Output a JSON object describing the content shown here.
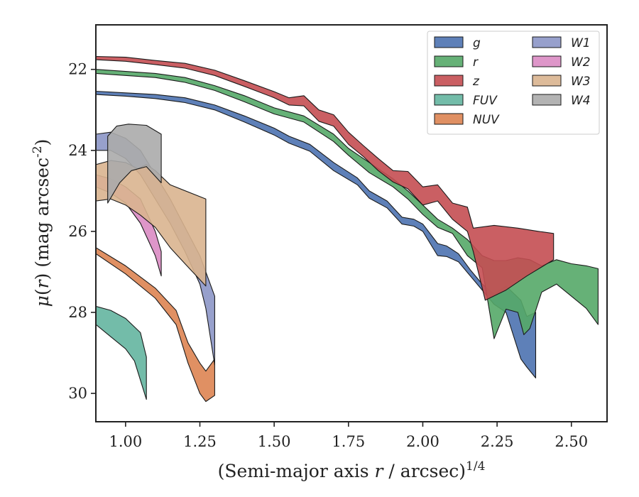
{
  "chart_data": {
    "type": "area",
    "xlabel": "(Semi-major axis r / arcsec)^{1/4}",
    "ylabel": "μ(r) (mag arcsec^{-2})",
    "xlim": [
      0.9,
      2.62
    ],
    "ylim": [
      30.7,
      20.9
    ],
    "y_inverted": true,
    "x_ticks": [
      "1.00",
      "1.25",
      "1.50",
      "1.75",
      "2.00",
      "2.25",
      "2.50"
    ],
    "x_tick_values": [
      1.0,
      1.25,
      1.5,
      1.75,
      2.0,
      2.25,
      2.5
    ],
    "y_ticks": [
      "22",
      "24",
      "26",
      "28",
      "30"
    ],
    "y_tick_values": [
      22,
      24,
      26,
      28,
      30
    ],
    "grid": false,
    "legend_position": "top-right",
    "legend_columns": 2,
    "series": [
      {
        "name": "g",
        "color": "#4c72b0",
        "upper": [
          [
            0.9,
            22.54
          ],
          [
            1.0,
            22.58
          ],
          [
            1.1,
            22.62
          ],
          [
            1.2,
            22.7
          ],
          [
            1.3,
            22.88
          ],
          [
            1.4,
            23.15
          ],
          [
            1.5,
            23.45
          ],
          [
            1.55,
            23.65
          ],
          [
            1.62,
            23.85
          ],
          [
            1.7,
            24.3
          ],
          [
            1.78,
            24.68
          ],
          [
            1.82,
            25.0
          ],
          [
            1.88,
            25.25
          ],
          [
            1.93,
            25.65
          ],
          [
            1.97,
            25.7
          ],
          [
            2.0,
            25.82
          ],
          [
            2.05,
            26.3
          ],
          [
            2.08,
            26.36
          ],
          [
            2.12,
            26.55
          ],
          [
            2.16,
            26.95
          ],
          [
            2.2,
            27.3
          ],
          [
            2.24,
            27.55
          ],
          [
            2.28,
            27.35
          ],
          [
            2.33,
            27.7
          ],
          [
            2.35,
            28.1
          ],
          [
            2.38,
            28.0
          ]
        ],
        "lower": [
          [
            0.9,
            22.62
          ],
          [
            1.0,
            22.66
          ],
          [
            1.1,
            22.72
          ],
          [
            1.2,
            22.82
          ],
          [
            1.3,
            23.0
          ],
          [
            1.4,
            23.3
          ],
          [
            1.5,
            23.62
          ],
          [
            1.55,
            23.82
          ],
          [
            1.62,
            24.02
          ],
          [
            1.7,
            24.5
          ],
          [
            1.78,
            24.85
          ],
          [
            1.82,
            25.18
          ],
          [
            1.88,
            25.42
          ],
          [
            1.93,
            25.82
          ],
          [
            1.97,
            25.87
          ],
          [
            2.0,
            26.0
          ],
          [
            2.05,
            26.6
          ],
          [
            2.08,
            26.62
          ],
          [
            2.12,
            26.75
          ],
          [
            2.16,
            27.1
          ],
          [
            2.2,
            27.45
          ],
          [
            2.24,
            27.8
          ],
          [
            2.28,
            28.0
          ],
          [
            2.33,
            29.15
          ],
          [
            2.35,
            29.35
          ],
          [
            2.38,
            29.62
          ]
        ]
      },
      {
        "name": "r",
        "color": "#55a868",
        "upper": [
          [
            0.9,
            22.0
          ],
          [
            1.0,
            22.05
          ],
          [
            1.1,
            22.1
          ],
          [
            1.2,
            22.2
          ],
          [
            1.3,
            22.4
          ],
          [
            1.4,
            22.65
          ],
          [
            1.5,
            22.95
          ],
          [
            1.6,
            23.15
          ],
          [
            1.7,
            23.6
          ],
          [
            1.75,
            23.95
          ],
          [
            1.82,
            24.3
          ],
          [
            1.9,
            24.7
          ],
          [
            1.95,
            25.0
          ],
          [
            2.0,
            25.35
          ],
          [
            2.05,
            25.7
          ],
          [
            2.1,
            25.92
          ],
          [
            2.15,
            26.2
          ],
          [
            2.2,
            26.6
          ],
          [
            2.24,
            26.72
          ],
          [
            2.28,
            26.72
          ],
          [
            2.32,
            26.65
          ],
          [
            2.36,
            26.7
          ],
          [
            2.4,
            26.85
          ],
          [
            2.45,
            26.7
          ],
          [
            2.5,
            26.8
          ],
          [
            2.55,
            26.85
          ],
          [
            2.59,
            26.92
          ]
        ],
        "lower": [
          [
            0.9,
            22.1
          ],
          [
            1.0,
            22.15
          ],
          [
            1.1,
            22.2
          ],
          [
            1.2,
            22.32
          ],
          [
            1.3,
            22.52
          ],
          [
            1.4,
            22.8
          ],
          [
            1.5,
            23.1
          ],
          [
            1.6,
            23.3
          ],
          [
            1.7,
            23.78
          ],
          [
            1.75,
            24.12
          ],
          [
            1.82,
            24.55
          ],
          [
            1.9,
            24.9
          ],
          [
            1.95,
            25.2
          ],
          [
            2.0,
            25.58
          ],
          [
            2.05,
            25.9
          ],
          [
            2.1,
            26.05
          ],
          [
            2.15,
            26.6
          ],
          [
            2.2,
            26.9
          ],
          [
            2.24,
            28.65
          ],
          [
            2.28,
            27.92
          ],
          [
            2.32,
            28.0
          ],
          [
            2.34,
            28.55
          ],
          [
            2.36,
            28.4
          ],
          [
            2.4,
            27.5
          ],
          [
            2.45,
            27.3
          ],
          [
            2.5,
            27.6
          ],
          [
            2.55,
            27.9
          ],
          [
            2.59,
            28.3
          ]
        ]
      },
      {
        "name": "z",
        "color": "#c44e52",
        "upper": [
          [
            0.9,
            21.68
          ],
          [
            1.0,
            21.7
          ],
          [
            1.1,
            21.78
          ],
          [
            1.2,
            21.85
          ],
          [
            1.3,
            22.02
          ],
          [
            1.4,
            22.28
          ],
          [
            1.5,
            22.55
          ],
          [
            1.55,
            22.7
          ],
          [
            1.6,
            22.65
          ],
          [
            1.65,
            23.0
          ],
          [
            1.7,
            23.12
          ],
          [
            1.75,
            23.55
          ],
          [
            1.8,
            23.88
          ],
          [
            1.85,
            24.2
          ],
          [
            1.9,
            24.5
          ],
          [
            1.95,
            24.52
          ],
          [
            2.0,
            24.9
          ],
          [
            2.05,
            24.85
          ],
          [
            2.1,
            25.3
          ],
          [
            2.15,
            25.4
          ],
          [
            2.17,
            25.92
          ],
          [
            2.24,
            25.85
          ],
          [
            2.32,
            25.92
          ],
          [
            2.39,
            26.0
          ],
          [
            2.44,
            26.05
          ]
        ],
        "lower": [
          [
            0.9,
            21.76
          ],
          [
            1.0,
            21.8
          ],
          [
            1.1,
            21.88
          ],
          [
            1.2,
            21.97
          ],
          [
            1.3,
            22.15
          ],
          [
            1.4,
            22.42
          ],
          [
            1.5,
            22.7
          ],
          [
            1.55,
            22.88
          ],
          [
            1.6,
            22.9
          ],
          [
            1.65,
            23.28
          ],
          [
            1.7,
            23.4
          ],
          [
            1.75,
            23.85
          ],
          [
            1.8,
            24.15
          ],
          [
            1.85,
            24.5
          ],
          [
            1.9,
            24.78
          ],
          [
            1.95,
            24.95
          ],
          [
            2.0,
            25.35
          ],
          [
            2.05,
            25.25
          ],
          [
            2.1,
            25.7
          ],
          [
            2.15,
            26.0
          ],
          [
            2.17,
            26.5
          ],
          [
            2.21,
            27.7
          ],
          [
            2.28,
            27.45
          ],
          [
            2.35,
            27.1
          ],
          [
            2.44,
            26.7
          ]
        ]
      },
      {
        "name": "FUV",
        "color": "#64b5a0",
        "upper": [
          [
            0.9,
            27.85
          ],
          [
            0.95,
            27.95
          ],
          [
            1.0,
            28.15
          ],
          [
            1.05,
            28.5
          ],
          [
            1.07,
            29.1
          ]
        ],
        "lower": [
          [
            0.9,
            28.3
          ],
          [
            0.95,
            28.6
          ],
          [
            1.0,
            28.9
          ],
          [
            1.03,
            29.2
          ],
          [
            1.07,
            30.15
          ]
        ]
      },
      {
        "name": "NUV",
        "color": "#dd8452",
        "upper": [
          [
            0.9,
            26.4
          ],
          [
            1.0,
            26.85
          ],
          [
            1.1,
            27.4
          ],
          [
            1.17,
            27.95
          ],
          [
            1.21,
            28.75
          ],
          [
            1.25,
            29.25
          ],
          [
            1.27,
            29.45
          ],
          [
            1.3,
            29.15
          ]
        ],
        "lower": [
          [
            0.9,
            26.55
          ],
          [
            1.0,
            27.05
          ],
          [
            1.1,
            27.65
          ],
          [
            1.17,
            28.3
          ],
          [
            1.21,
            29.25
          ],
          [
            1.25,
            30.0
          ],
          [
            1.27,
            30.2
          ],
          [
            1.3,
            30.05
          ]
        ]
      },
      {
        "name": "W1",
        "color": "#8c96c6",
        "upper": [
          [
            0.9,
            23.6
          ],
          [
            0.95,
            23.55
          ],
          [
            1.0,
            23.7
          ],
          [
            1.05,
            24.0
          ],
          [
            1.1,
            24.6
          ],
          [
            1.15,
            25.2
          ],
          [
            1.2,
            25.9
          ],
          [
            1.25,
            26.6
          ],
          [
            1.3,
            27.6
          ]
        ],
        "lower": [
          [
            0.9,
            24.0
          ],
          [
            0.95,
            24.0
          ],
          [
            1.0,
            24.2
          ],
          [
            1.05,
            24.6
          ],
          [
            1.1,
            25.2
          ],
          [
            1.15,
            25.8
          ],
          [
            1.2,
            26.5
          ],
          [
            1.25,
            27.3
          ],
          [
            1.27,
            27.9
          ],
          [
            1.3,
            29.3
          ]
        ]
      },
      {
        "name": "W2",
        "color": "#da8bc3",
        "upper": [
          [
            0.9,
            24.6
          ],
          [
            0.95,
            24.7
          ],
          [
            1.0,
            24.9
          ],
          [
            1.05,
            25.2
          ],
          [
            1.1,
            26.0
          ],
          [
            1.12,
            26.5
          ]
        ],
        "lower": [
          [
            0.9,
            24.9
          ],
          [
            0.95,
            25.05
          ],
          [
            1.0,
            25.3
          ],
          [
            1.05,
            25.8
          ],
          [
            1.1,
            26.6
          ],
          [
            1.12,
            27.1
          ]
        ]
      },
      {
        "name": "W3",
        "color": "#d9b48f",
        "upper": [
          [
            0.9,
            24.35
          ],
          [
            0.95,
            24.25
          ],
          [
            1.0,
            24.3
          ],
          [
            1.04,
            24.45
          ],
          [
            1.07,
            24.35
          ],
          [
            1.1,
            24.5
          ],
          [
            1.15,
            24.85
          ],
          [
            1.27,
            25.2
          ]
        ],
        "lower": [
          [
            0.9,
            25.25
          ],
          [
            0.95,
            25.2
          ],
          [
            1.0,
            25.35
          ],
          [
            1.05,
            25.6
          ],
          [
            1.1,
            25.9
          ],
          [
            1.15,
            26.4
          ],
          [
            1.2,
            26.8
          ],
          [
            1.27,
            27.35
          ]
        ]
      },
      {
        "name": "W4",
        "color": "#ababab",
        "upper": [
          [
            0.94,
            23.65
          ],
          [
            0.97,
            23.4
          ],
          [
            1.01,
            23.35
          ],
          [
            1.07,
            23.38
          ],
          [
            1.12,
            23.6
          ]
        ],
        "lower": [
          [
            0.94,
            25.3
          ],
          [
            0.98,
            24.8
          ],
          [
            1.02,
            24.5
          ],
          [
            1.07,
            24.4
          ],
          [
            1.12,
            24.8
          ]
        ]
      }
    ]
  }
}
